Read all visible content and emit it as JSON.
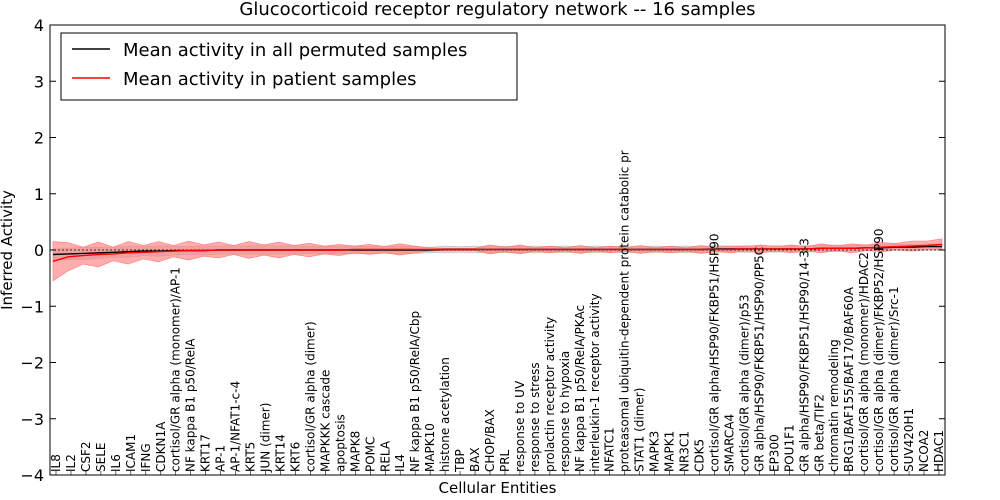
{
  "chart_data": {
    "type": "line",
    "title": "Glucocorticoid receptor regulatory network -- 16 samples",
    "xlabel": "Cellular Entities",
    "ylabel": "Inferred Activity",
    "ylim": [
      -4,
      4
    ],
    "yticks": [
      -4,
      -3,
      -2,
      -1,
      0,
      1,
      2,
      3,
      4
    ],
    "ytick_labels": [
      "−4",
      "−3",
      "−2",
      "−1",
      "0",
      "1",
      "2",
      "3",
      "4"
    ],
    "legend_position": "top-left",
    "series": [
      {
        "name": "Mean activity in all permuted samples",
        "color": "#000000",
        "values": [
          -0.08,
          -0.07,
          -0.06,
          -0.05,
          -0.04,
          -0.03,
          -0.02,
          -0.02,
          -0.01,
          -0.01,
          -0.01,
          0.0,
          0.0,
          0.0,
          0.0,
          0.0,
          0.0,
          0.0,
          0.0,
          0.0,
          0.0,
          0.0,
          0.0,
          0.0,
          0.0,
          0.0,
          0.01,
          0.01,
          0.01,
          0.01,
          0.01,
          0.01,
          0.01,
          0.01,
          0.01,
          0.01,
          0.01,
          0.01,
          0.01,
          0.01,
          0.01,
          0.01,
          0.01,
          0.01,
          0.02,
          0.02,
          0.02,
          0.02,
          0.02,
          0.02,
          0.02,
          0.03,
          0.03,
          0.03,
          0.04,
          0.04,
          0.05,
          0.05,
          0.06,
          0.06
        ]
      },
      {
        "name": "Mean activity in patient samples",
        "color": "#ff0000",
        "values": [
          -0.2,
          -0.12,
          -0.1,
          -0.08,
          -0.07,
          -0.05,
          -0.04,
          -0.03,
          -0.02,
          -0.01,
          -0.01,
          0.0,
          0.0,
          0.0,
          0.0,
          0.0,
          0.0,
          0.0,
          0.0,
          0.0,
          0.01,
          0.01,
          0.01,
          0.01,
          0.01,
          0.01,
          0.01,
          0.01,
          0.01,
          0.01,
          0.01,
          0.01,
          0.01,
          0.01,
          0.01,
          0.01,
          0.01,
          0.01,
          0.01,
          0.01,
          0.01,
          0.01,
          0.01,
          0.01,
          0.01,
          0.01,
          0.02,
          0.02,
          0.02,
          0.02,
          0.02,
          0.03,
          0.03,
          0.03,
          0.04,
          0.05,
          0.06,
          0.07,
          0.08,
          0.1
        ]
      }
    ],
    "bands": [
      {
        "name": "permuted spread",
        "color": "#c0c0c0",
        "spread": [
          0.1,
          0.1,
          0.11,
          0.1,
          0.09,
          0.1,
          0.08,
          0.09,
          0.08,
          0.07,
          0.08,
          0.07,
          0.08,
          0.07,
          0.08,
          0.07,
          0.08,
          0.06,
          0.07,
          0.06,
          0.07,
          0.06,
          0.07,
          0.06,
          0.06,
          0.05,
          0.06,
          0.05,
          0.06,
          0.05,
          0.06,
          0.05,
          0.06,
          0.05,
          0.06,
          0.05,
          0.06,
          0.05,
          0.06,
          0.05,
          0.06,
          0.05,
          0.06,
          0.05,
          0.06,
          0.05,
          0.06,
          0.05,
          0.06,
          0.05,
          0.06,
          0.05,
          0.06,
          0.05,
          0.05,
          0.05,
          0.05,
          0.05,
          0.05,
          0.05
        ]
      },
      {
        "name": "patient spread",
        "color": "#ff7777",
        "spread": [
          0.35,
          0.25,
          0.15,
          0.22,
          0.12,
          0.2,
          0.12,
          0.18,
          0.1,
          0.17,
          0.1,
          0.14,
          0.08,
          0.15,
          0.09,
          0.14,
          0.08,
          0.12,
          0.07,
          0.1,
          0.06,
          0.09,
          0.05,
          0.1,
          0.06,
          0.03,
          0.02,
          0.02,
          0.02,
          0.08,
          0.04,
          0.08,
          0.03,
          0.06,
          0.03,
          0.07,
          0.03,
          0.06,
          0.03,
          0.07,
          0.03,
          0.06,
          0.03,
          0.07,
          0.04,
          0.06,
          0.04,
          0.07,
          0.04,
          0.07,
          0.04,
          0.08,
          0.04,
          0.08,
          0.05,
          0.08,
          0.06,
          0.09,
          0.08,
          0.1
        ]
      }
    ],
    "entity_labels": [
      "IL8",
      "IL2",
      "CSF2",
      "SELE",
      "IL6",
      "ICAM1",
      "IFNG",
      "CDKN1A",
      "cortisol/GR alpha (monomer)/AP-1",
      "NF kappa B1 p50/RelA",
      "KRT17",
      "AP-1",
      "AP-1/NFAT1-c-4",
      "KRT5",
      "JUN (dimer)",
      "KRT14",
      "KRT6",
      "cortisol/GR alpha (dimer)",
      "MAPKKK cascade",
      "apoptosis",
      "MAPK8",
      "POMC",
      "RELA",
      "IL4",
      "NF kappa B1 p50/RelA/Cbp",
      "MAPK10",
      "histone acetylation",
      "TBP",
      "BAX",
      "CHOP/BAX",
      "PRL",
      "response to UV",
      "response to stress",
      "prolactin receptor activity",
      "response to hypoxia",
      "NF kappa B1 p50/RelA/PKAc",
      "interleukin-1 receptor activity",
      "NFATC1",
      "proteasomal ubiquitin-dependent protein catabolic pr",
      "STAT1 (dimer)",
      "MAPK3",
      "MAPK1",
      "NR3C1",
      "CDK5",
      "cortisol/GR alpha/HSP90/FKBP51/HSP90",
      "SMARCA4",
      "cortisol/GR alpha (dimer)/p53",
      "GR alpha/HSP90/FKBP51/HSP90/PP5C",
      "EP300",
      "POU1F1",
      "GR alpha/HSP90/FKBP51/HSP90/14-3-3",
      "GR beta/TIF2",
      "chromatin remodeling",
      "BRG1/BAF155/BAF170/BAF60A",
      "cortisol/GR alpha (monomer)/HDAC2",
      "cortisol/GR alpha (dimer)/FKBP52/HSP90",
      "cortisol/GR alpha (dimer)/Src-1",
      "SUV420H1",
      "NCOA2",
      "HDAC1"
    ]
  }
}
